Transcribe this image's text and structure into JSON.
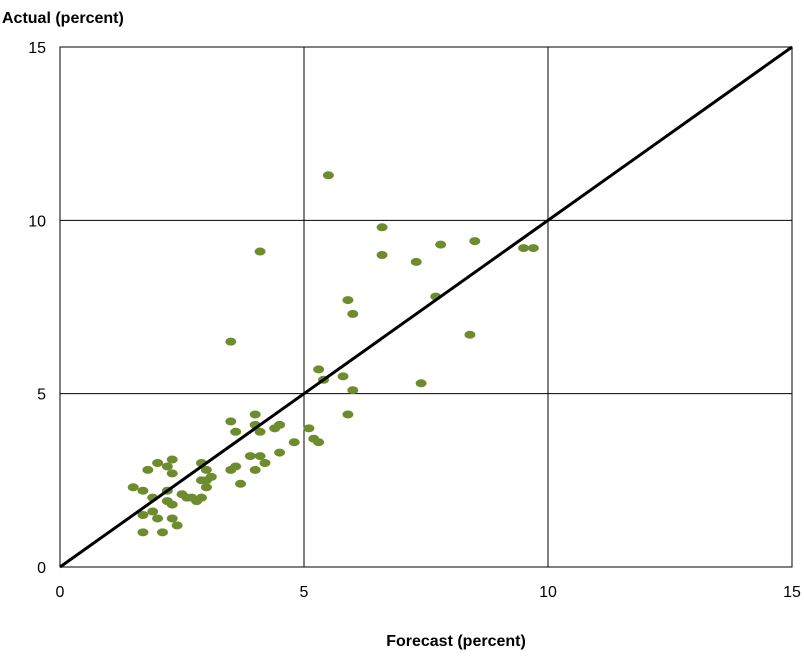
{
  "chart_data": {
    "type": "scatter",
    "title": "",
    "xlabel": "Forecast (percent)",
    "ylabel": "Actual (percent)",
    "xlim": [
      0,
      15
    ],
    "ylim": [
      0,
      15
    ],
    "x_ticks": [
      "0",
      "5",
      "10",
      "15"
    ],
    "y_ticks": [
      "0",
      "5",
      "10",
      "15"
    ],
    "grid": true,
    "legend": "none",
    "point_color": "#6e8b2e",
    "line_color": "#000000",
    "reference_line": {
      "x": [
        0,
        15
      ],
      "y": [
        0,
        15
      ]
    },
    "series": [
      {
        "points": [
          [
            1.5,
            2.3
          ],
          [
            1.7,
            2.2
          ],
          [
            1.8,
            2.8
          ],
          [
            1.9,
            2.0
          ],
          [
            2.0,
            1.4
          ],
          [
            1.7,
            1.5
          ],
          [
            1.9,
            1.6
          ],
          [
            1.7,
            1.0
          ],
          [
            2.0,
            3.0
          ],
          [
            2.1,
            1.0
          ],
          [
            2.2,
            2.2
          ],
          [
            2.2,
            1.9
          ],
          [
            2.3,
            1.8
          ],
          [
            2.2,
            2.9
          ],
          [
            2.3,
            2.7
          ],
          [
            2.3,
            3.1
          ],
          [
            2.3,
            1.4
          ],
          [
            2.4,
            1.2
          ],
          [
            2.5,
            2.1
          ],
          [
            2.6,
            2.0
          ],
          [
            2.7,
            2.0
          ],
          [
            2.8,
            1.9
          ],
          [
            2.9,
            2.0
          ],
          [
            2.9,
            3.0
          ],
          [
            2.9,
            2.5
          ],
          [
            3.0,
            2.3
          ],
          [
            3.0,
            2.8
          ],
          [
            3.0,
            2.5
          ],
          [
            3.1,
            2.6
          ],
          [
            3.5,
            2.8
          ],
          [
            3.5,
            4.2
          ],
          [
            3.6,
            2.9
          ],
          [
            3.6,
            3.9
          ],
          [
            3.7,
            2.4
          ],
          [
            3.5,
            6.5
          ],
          [
            3.9,
            3.2
          ],
          [
            4.0,
            2.8
          ],
          [
            4.0,
            4.1
          ],
          [
            4.0,
            4.4
          ],
          [
            4.1,
            3.2
          ],
          [
            4.1,
            3.9
          ],
          [
            4.1,
            9.1
          ],
          [
            4.2,
            3.0
          ],
          [
            4.4,
            4.0
          ],
          [
            4.5,
            3.3
          ],
          [
            4.5,
            4.1
          ],
          [
            4.8,
            3.6
          ],
          [
            5.1,
            4.0
          ],
          [
            5.2,
            3.7
          ],
          [
            5.3,
            3.6
          ],
          [
            5.3,
            5.7
          ],
          [
            5.4,
            5.4
          ],
          [
            5.5,
            11.3
          ],
          [
            5.8,
            5.5
          ],
          [
            5.9,
            7.7
          ],
          [
            5.9,
            4.4
          ],
          [
            6.0,
            5.1
          ],
          [
            6.0,
            7.3
          ],
          [
            6.6,
            9.0
          ],
          [
            6.6,
            9.8
          ],
          [
            7.3,
            8.8
          ],
          [
            7.4,
            5.3
          ],
          [
            7.7,
            7.8
          ],
          [
            7.8,
            9.3
          ],
          [
            8.4,
            6.7
          ],
          [
            8.5,
            9.4
          ],
          [
            9.5,
            9.2
          ],
          [
            9.7,
            9.2
          ]
        ]
      }
    ]
  }
}
